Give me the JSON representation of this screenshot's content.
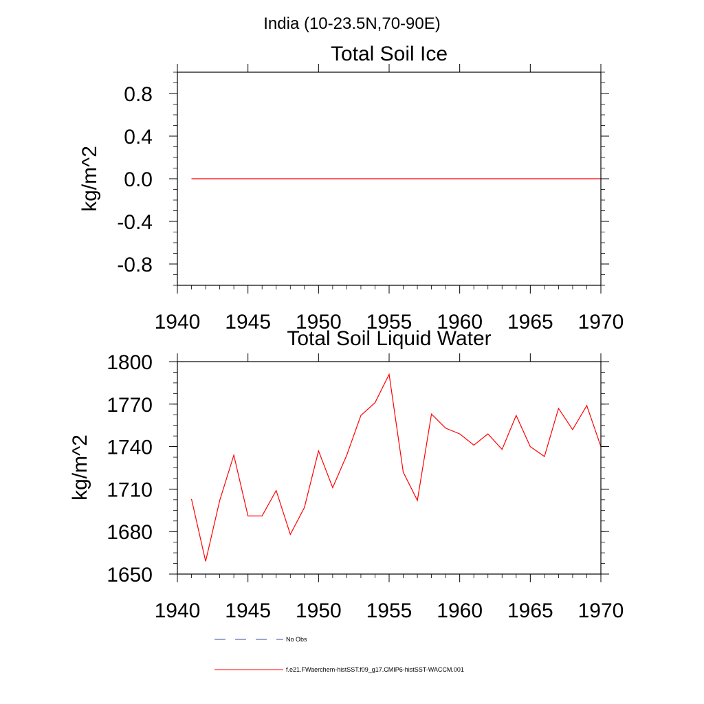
{
  "figure_title": "India (10-23.5N,70-90E)",
  "chart_data": [
    {
      "type": "line",
      "title": "Total Soil Ice",
      "xlabel": "",
      "ylabel": "kg/m^2",
      "xlim": [
        1940,
        1970
      ],
      "ylim": [
        -1.0,
        1.0
      ],
      "x_ticks": [
        1940,
        1945,
        1950,
        1955,
        1960,
        1965,
        1970
      ],
      "x_tick_labels": [
        "1940",
        "1945",
        "1950",
        "1955",
        "1960",
        "1965",
        "1970"
      ],
      "y_ticks": [
        -0.8,
        -0.4,
        0.0,
        0.4,
        0.8
      ],
      "y_tick_labels": [
        "-0.8",
        "-0.4",
        "0.0",
        "0.4",
        "0.8"
      ],
      "grid": false,
      "series": [
        {
          "name": "f.e21.FWaerchem-histSST.f09_g17.CMIP6-histSST-WACCM.001",
          "color": "#ff0000",
          "x": [
            1941,
            1942,
            1943,
            1944,
            1945,
            1946,
            1947,
            1948,
            1949,
            1950,
            1951,
            1952,
            1953,
            1954,
            1955,
            1956,
            1957,
            1958,
            1959,
            1960,
            1961,
            1962,
            1963,
            1964,
            1965,
            1966,
            1967,
            1968,
            1969,
            1970
          ],
          "y": [
            0,
            0,
            0,
            0,
            0,
            0,
            0,
            0,
            0,
            0,
            0,
            0,
            0,
            0,
            0,
            0,
            0,
            0,
            0,
            0,
            0,
            0,
            0,
            0,
            0,
            0,
            0,
            0,
            0,
            0
          ]
        }
      ]
    },
    {
      "type": "line",
      "title": "Total Soil Liquid Water",
      "xlabel": "",
      "ylabel": "kg/m^2",
      "xlim": [
        1940,
        1970
      ],
      "ylim": [
        1650,
        1800
      ],
      "x_ticks": [
        1940,
        1945,
        1950,
        1955,
        1960,
        1965,
        1970
      ],
      "x_tick_labels": [
        "1940",
        "1945",
        "1950",
        "1955",
        "1960",
        "1965",
        "1970"
      ],
      "y_ticks": [
        1650,
        1680,
        1710,
        1740,
        1770,
        1800
      ],
      "y_tick_labels": [
        "1650",
        "1680",
        "1710",
        "1740",
        "1770",
        "1800"
      ],
      "grid": false,
      "series": [
        {
          "name": "f.e21.FWaerchem-histSST.f09_g17.CMIP6-histSST-WACCM.001",
          "color": "#ff0000",
          "x": [
            1941,
            1942,
            1943,
            1944,
            1945,
            1946,
            1947,
            1948,
            1949,
            1950,
            1951,
            1952,
            1953,
            1954,
            1955,
            1956,
            1957,
            1958,
            1959,
            1960,
            1961,
            1962,
            1963,
            1964,
            1965,
            1966,
            1967,
            1968,
            1969,
            1970
          ],
          "y": [
            1703,
            1659,
            1702,
            1734,
            1691,
            1691,
            1709,
            1678,
            1697,
            1737,
            1711,
            1734,
            1762,
            1771,
            1791,
            1722,
            1702,
            1763,
            1753,
            1749,
            1741,
            1749,
            1738,
            1762,
            1740,
            1733,
            1767,
            1752,
            1769,
            1740
          ]
        }
      ]
    }
  ],
  "legend": {
    "placement": "bottom",
    "entries": [
      {
        "label": "No Obs",
        "color": "#3b4fa0",
        "dash": "dashed"
      },
      {
        "label": "f.e21.FWaerchem-histSST.f09_g17.CMIP6-histSST-WACCM.001",
        "color": "#ff0000",
        "dash": "solid"
      }
    ]
  }
}
